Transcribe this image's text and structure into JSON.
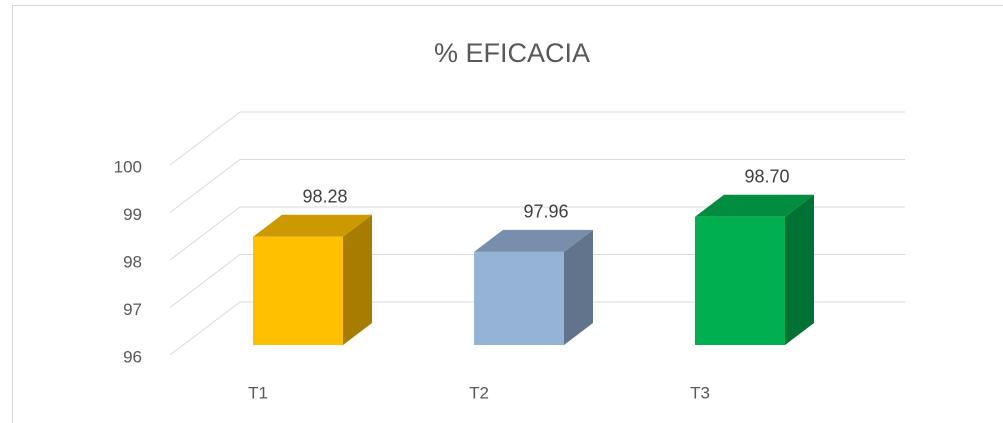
{
  "chart_data": {
    "type": "bar3d",
    "title": "% EFICACIA",
    "categories": [
      "T1",
      "T2",
      "T3"
    ],
    "values": [
      98.28,
      97.96,
      98.7
    ],
    "value_labels": [
      "98.28",
      "97.96",
      "98.70"
    ],
    "colors": [
      "#ffc000",
      "#95b3d7",
      "#00b050"
    ],
    "ylim": [
      96,
      100
    ],
    "yticks": [
      96,
      97,
      98,
      99,
      100
    ],
    "grid": true
  }
}
